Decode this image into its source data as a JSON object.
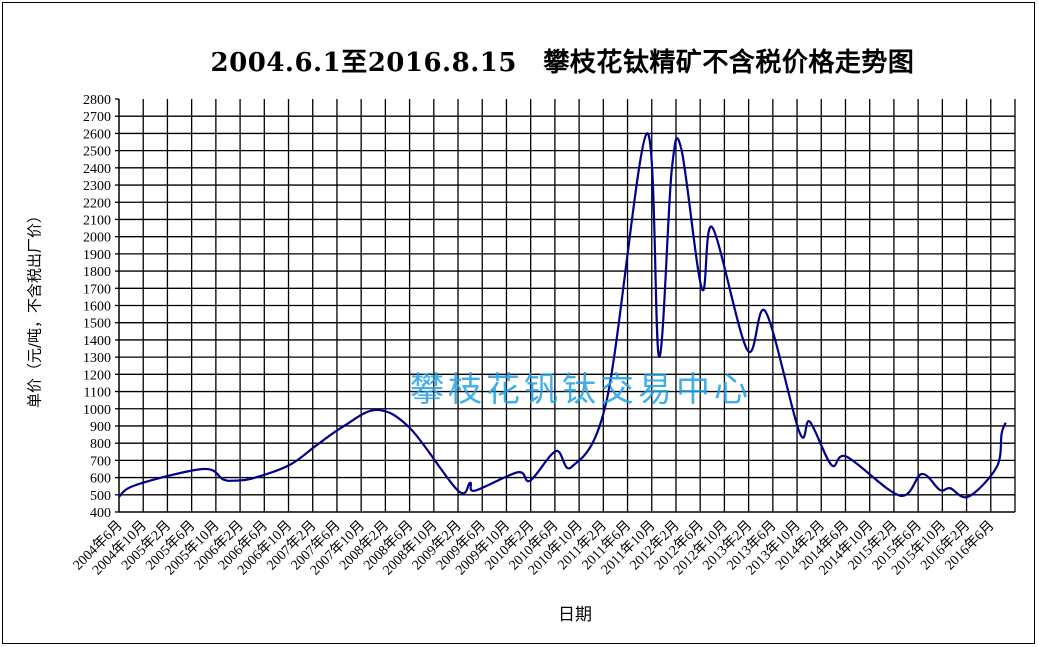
{
  "chart_data": {
    "type": "line",
    "title": "2004.6.1至2016.8.15　攀枝花钛精矿不含税价格走势图",
    "xlabel": "日期",
    "ylabel": "单价（元/吨，不含税出厂价）",
    "watermark": "攀枝花钒钛交易中心",
    "ylim": [
      400,
      2800
    ],
    "ytick_step": 100,
    "grid": true,
    "legend": "none",
    "x_tick_labels": [
      "2004年6月",
      "2004年10月",
      "2005年2月",
      "2005年6月",
      "2005年10月",
      "2006年2月",
      "2006年6月",
      "2006年10月",
      "2007年2月",
      "2007年6月",
      "2007年10月",
      "2008年2月",
      "2008年6月",
      "2008年10月",
      "2009年2月",
      "2009年6月",
      "2009年10月",
      "2010年2月",
      "2010年6月",
      "2010年10月",
      "2011年2月",
      "2011年6月",
      "2011年10月",
      "2012年2月",
      "2012年6月",
      "2012年10月",
      "2013年2月",
      "2013年6月",
      "2013年10月",
      "2014年2月",
      "2014年6月",
      "2014年10月",
      "2015年2月",
      "2015年6月",
      "2015年10月",
      "2016年2月",
      "2016年6月"
    ],
    "y_tick_labels": [
      "400",
      "500",
      "600",
      "700",
      "800",
      "900",
      "1000",
      "1100",
      "1200",
      "1300",
      "1400",
      "1500",
      "1600",
      "1700",
      "1800",
      "1900",
      "2000",
      "2100",
      "2200",
      "2300",
      "2400",
      "2500",
      "2600",
      "2700",
      "2800"
    ],
    "series": [
      {
        "color": "#00008B",
        "points": [
          [
            "2004-06-01",
            489
          ],
          [
            "2004-08-25",
            557
          ],
          [
            "2005-07-28",
            650
          ],
          [
            "2005-11-06",
            590
          ],
          [
            "2005-12-28",
            582
          ],
          [
            "2006-04-04",
            596
          ],
          [
            "2006-10-06",
            673
          ],
          [
            "2007-02-21",
            789
          ],
          [
            "2007-07-01",
            896
          ],
          [
            "2007-12-18",
            993
          ],
          [
            "2008-06-04",
            886
          ],
          [
            "2009-02-01",
            524
          ],
          [
            "2009-04-01",
            570
          ],
          [
            "2009-04-25",
            524
          ],
          [
            "2009-11-28",
            631
          ],
          [
            "2010-01-28",
            582
          ],
          [
            "2010-06-07",
            754
          ],
          [
            "2010-08-25",
            663
          ],
          [
            "2011-02-18",
            1051
          ],
          [
            "2011-09-07",
            2600
          ],
          [
            "2011-11-07",
            1302
          ],
          [
            "2012-01-10",
            2387
          ],
          [
            "2012-02-28",
            2507
          ],
          [
            "2012-06-10",
            1696
          ],
          [
            "2012-08-01",
            2054
          ],
          [
            "2013-01-25",
            1341
          ],
          [
            "2013-04-25",
            1564
          ],
          [
            "2013-10-13",
            863
          ],
          [
            "2013-12-04",
            925
          ],
          [
            "2014-03-22",
            673
          ],
          [
            "2014-06-07",
            721
          ],
          [
            "2015-03-01",
            495
          ],
          [
            "2015-06-19",
            621
          ],
          [
            "2015-09-19",
            528
          ],
          [
            "2015-11-10",
            538
          ],
          [
            "2016-02-10",
            489
          ],
          [
            "2016-07-01",
            663
          ],
          [
            "2016-07-25",
            857
          ],
          [
            "2016-08-15",
            919
          ]
        ]
      }
    ],
    "colors": {
      "line": "#00008B",
      "watermark": "#1EA0E6",
      "grid": "#000000"
    }
  }
}
